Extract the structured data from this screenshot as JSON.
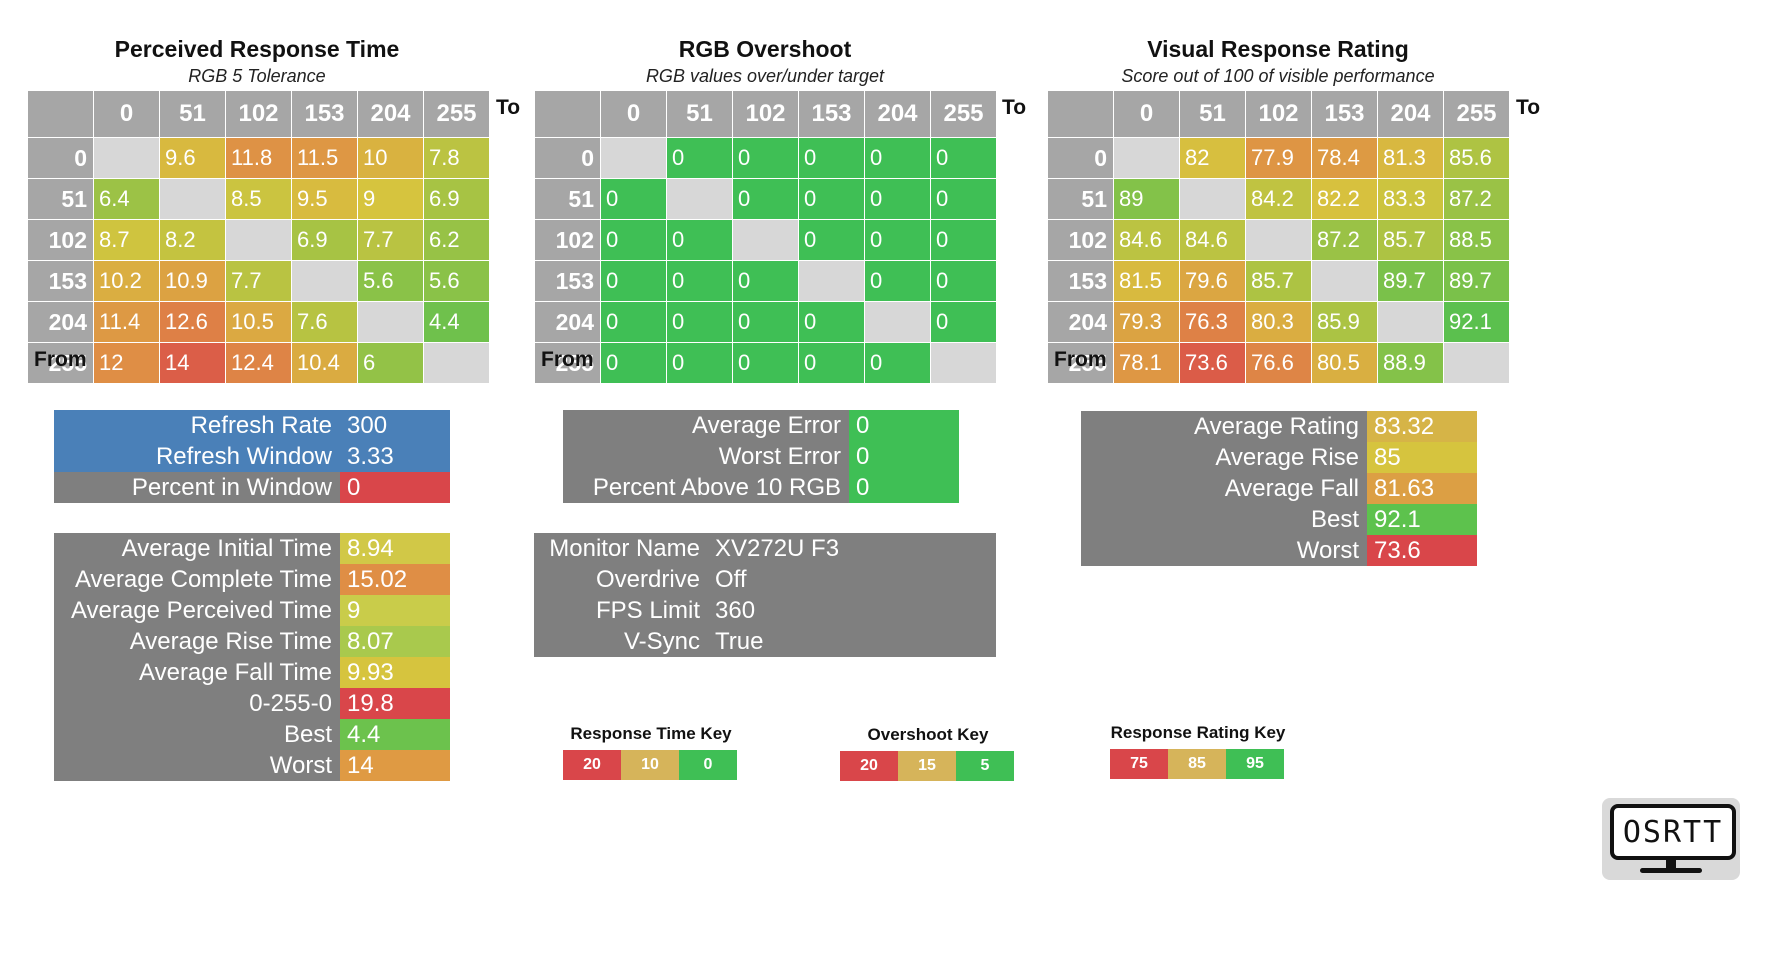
{
  "matrix_axis": [
    "0",
    "51",
    "102",
    "153",
    "204",
    "255"
  ],
  "to_label": "To",
  "from_label": "From",
  "perceived": {
    "title": "Perceived Response Time",
    "subtitle": "RGB 5 Tolerance",
    "rows": [
      [
        "",
        "9.6",
        "11.8",
        "11.5",
        "10",
        "7.8"
      ],
      [
        "6.4",
        "",
        "8.5",
        "9.5",
        "9",
        "6.9"
      ],
      [
        "8.7",
        "8.2",
        "",
        "6.9",
        "7.7",
        "6.2"
      ],
      [
        "10.2",
        "10.9",
        "7.7",
        "",
        "5.6",
        "5.6"
      ],
      [
        "11.4",
        "12.6",
        "10.5",
        "7.6",
        "",
        "4.4"
      ],
      [
        "12",
        "14",
        "12.4",
        "10.4",
        "6",
        ""
      ]
    ]
  },
  "overshoot": {
    "title": "RGB Overshoot",
    "subtitle": "RGB values over/under target",
    "rows": [
      [
        "",
        "0",
        "0",
        "0",
        "0",
        "0"
      ],
      [
        "0",
        "",
        "0",
        "0",
        "0",
        "0"
      ],
      [
        "0",
        "0",
        "",
        "0",
        "0",
        "0"
      ],
      [
        "0",
        "0",
        "0",
        "",
        "0",
        "0"
      ],
      [
        "0",
        "0",
        "0",
        "0",
        "",
        "0"
      ],
      [
        "0",
        "0",
        "0",
        "0",
        "0",
        ""
      ]
    ]
  },
  "rating": {
    "title": "Visual Response Rating",
    "subtitle": "Score out of 100 of visible performance",
    "rows": [
      [
        "",
        "82",
        "77.9",
        "78.4",
        "81.3",
        "85.6"
      ],
      [
        "89",
        "",
        "84.2",
        "82.2",
        "83.3",
        "87.2"
      ],
      [
        "84.6",
        "84.6",
        "",
        "87.2",
        "85.7",
        "88.5"
      ],
      [
        "81.5",
        "79.6",
        "85.7",
        "",
        "89.7",
        "89.7"
      ],
      [
        "79.3",
        "76.3",
        "80.3",
        "85.9",
        "",
        "92.1"
      ],
      [
        "78.1",
        "73.6",
        "76.6",
        "80.5",
        "88.9",
        ""
      ]
    ]
  },
  "refresh_box": {
    "refresh_rate_label": "Refresh Rate",
    "refresh_rate": "300",
    "refresh_window_label": "Refresh Window",
    "refresh_window": "3.33",
    "percent_window_label": "Percent in Window",
    "percent_window": "0"
  },
  "time_stats": {
    "avg_initial_label": "Average Initial Time",
    "avg_initial": "8.94",
    "avg_complete_label": "Average Complete Time",
    "avg_complete": "15.02",
    "avg_perceived_label": "Average Perceived Time",
    "avg_perceived": "9",
    "avg_rise_label": "Average Rise Time",
    "avg_rise": "8.07",
    "avg_fall_label": "Average Fall Time",
    "avg_fall": "9.93",
    "full_label": "0-255-0",
    "full": "19.8",
    "best_label": "Best",
    "best": "4.4",
    "worst_label": "Worst",
    "worst": "14"
  },
  "error_box": {
    "avg_error_label": "Average Error",
    "avg_error": "0",
    "worst_error_label": "Worst Error",
    "worst_error": "0",
    "pct_above_label": "Percent Above 10 RGB",
    "pct_above": "0"
  },
  "monitor": {
    "name_label": "Monitor Name",
    "name": "XV272U F3",
    "overdrive_label": "Overdrive",
    "overdrive": "Off",
    "fps_label": "FPS Limit",
    "fps": "360",
    "vsync_label": "V-Sync",
    "vsync": "True"
  },
  "rating_stats": {
    "avg_rating_label": "Average Rating",
    "avg_rating": "83.32",
    "avg_rise_label": "Average Rise",
    "avg_rise": "85",
    "avg_fall_label": "Average Fall",
    "avg_fall": "81.63",
    "best_label": "Best",
    "best": "92.1",
    "worst_label": "Worst",
    "worst": "73.6"
  },
  "keys": {
    "response_title": "Response Time Key",
    "response_values": [
      "20",
      "10",
      "0"
    ],
    "overshoot_title": "Overshoot Key",
    "overshoot_values": [
      "20",
      "15",
      "5"
    ],
    "rating_title": "Response Rating Key",
    "rating_values": [
      "75",
      "85",
      "95"
    ]
  },
  "logo_text": "OSRTT",
  "colors": {
    "red": "#d9464a",
    "orange": "#df8e45",
    "yellow": "#d6c43e",
    "green": "#3fbf55",
    "header_gray": "#a6a6a6",
    "diag_gray": "#d7d7d7",
    "box_gray": "#7f7f7f",
    "blue": "#4a80b8"
  }
}
